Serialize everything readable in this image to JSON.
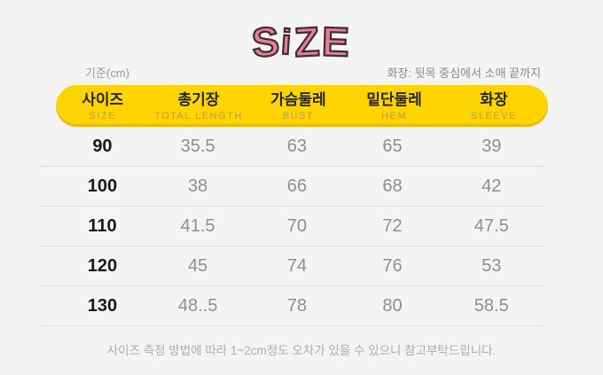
{
  "title": {
    "text": "SiZE",
    "letters": [
      "S",
      "i",
      "Z",
      "E"
    ]
  },
  "unit_label": "기준(cm)",
  "measure_note": "화장: 뒷목 중심에서 소매 끝까지",
  "table": {
    "columns": [
      {
        "ko": "사이즈",
        "en": "SIZE"
      },
      {
        "ko": "총기장",
        "en": "TOTAL LENGTH"
      },
      {
        "ko": "가슴둘레",
        "en": "BUST"
      },
      {
        "ko": "밑단둘레",
        "en": "HEM"
      },
      {
        "ko": "화장",
        "en": "SLEEVE"
      }
    ],
    "rows": [
      {
        "size": "90",
        "values": [
          "35.5",
          "63",
          "65",
          "39"
        ]
      },
      {
        "size": "100",
        "values": [
          "38",
          "66",
          "68",
          "42"
        ]
      },
      {
        "size": "110",
        "values": [
          "41.5",
          "70",
          "72",
          "47.5"
        ]
      },
      {
        "size": "120",
        "values": [
          "45",
          "74",
          "76",
          "53"
        ]
      },
      {
        "size": "130",
        "values": [
          "48..5",
          "78",
          "80",
          "58.5"
        ]
      }
    ]
  },
  "footer_note": "사이즈 측정 방법에 따라 1~2cm정도 오차가 있을 수 있으니 참고부탁드립니다.",
  "colors": {
    "background": "#f4f4f4",
    "header_bg": "#ffd400",
    "header_edge": "#efb70a",
    "title_pink": "#e57f93",
    "title_outline": "#3f2b2f",
    "divider": "#dcdcdc",
    "size_text": "#1a1a1a",
    "value_text": "#8f8f8f"
  }
}
